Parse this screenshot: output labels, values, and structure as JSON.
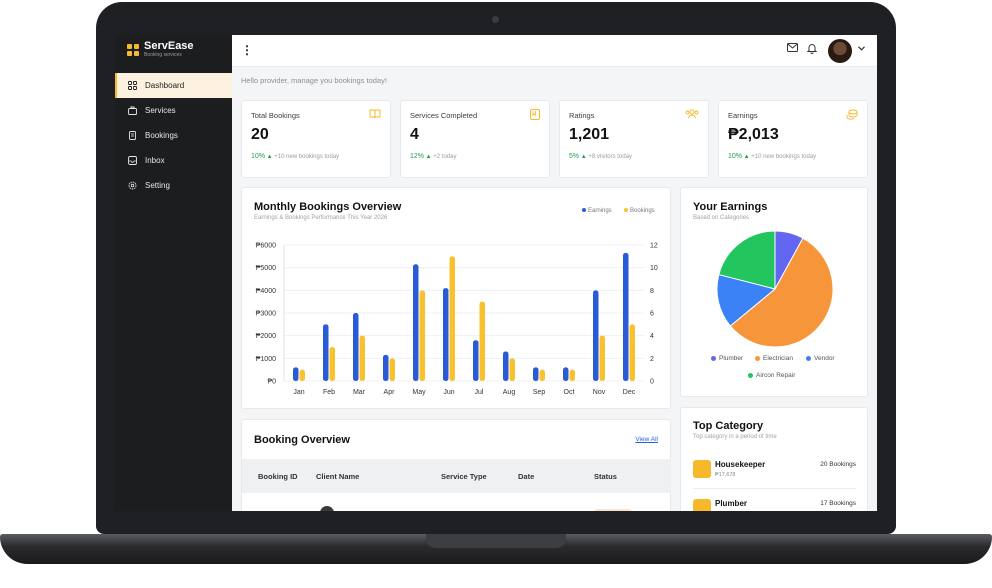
{
  "brand": {
    "name": "ServEase",
    "subtitle": "Booking services"
  },
  "sidebar": {
    "items": [
      {
        "label": "Dashboard",
        "icon": "grid-icon",
        "active": true
      },
      {
        "label": "Services",
        "icon": "briefcase-icon"
      },
      {
        "label": "Bookings",
        "icon": "clipboard-icon"
      },
      {
        "label": "Inbox",
        "icon": "inbox-icon"
      },
      {
        "label": "Setting",
        "icon": "gear-icon"
      }
    ]
  },
  "topbar": {
    "menu_icon": "kebab-icon",
    "icons": [
      "mail-icon",
      "bell-icon",
      "avatar",
      "chevron-down-icon"
    ]
  },
  "greeting": "Hello provider, manage you bookings today!",
  "stats": [
    {
      "title": "Total Bookings",
      "value": "20",
      "pct": "10%",
      "note": "+10 new bookings today",
      "icon": "book-icon"
    },
    {
      "title": "Services Completed",
      "value": "4",
      "pct": "12%",
      "note": "+2 today",
      "icon": "check-book-icon"
    },
    {
      "title": "Ratings",
      "value": "1,201",
      "pct": "5%",
      "note": "+8 visitors today",
      "icon": "people-icon"
    },
    {
      "title": "Earnings",
      "value": "₱2,013",
      "pct": "10%",
      "note": "+10 new bookings today",
      "icon": "coins-icon"
    }
  ],
  "monthly": {
    "title": "Monthly Bookings Overview",
    "subtitle": "Earnings & Bookings Performance This Year 2026",
    "legend": [
      "Earnings",
      "Bookings"
    ]
  },
  "chart_data": {
    "type": "bar",
    "categories": [
      "Jan",
      "Feb",
      "Mar",
      "Apr",
      "May",
      "Jun",
      "Jul",
      "Aug",
      "Sep",
      "Oct",
      "Nov",
      "Dec"
    ],
    "series": [
      {
        "name": "Earnings",
        "axis": "left",
        "color": "#2a5bd7",
        "values": [
          600,
          2500,
          3000,
          1150,
          5150,
          4100,
          1800,
          1300,
          600,
          600,
          4000,
          5650
        ]
      },
      {
        "name": "Bookings",
        "axis": "right",
        "color": "#f8c22e",
        "values": [
          1,
          3,
          4,
          2,
          8,
          11,
          7,
          2,
          1,
          1,
          4,
          5
        ]
      }
    ],
    "y_left": {
      "ticks": [
        "₱0",
        "₱1000",
        "₱2000",
        "₱3000",
        "₱4000",
        "₱5000",
        "₱6000"
      ],
      "range": [
        0,
        6000
      ]
    },
    "y_right": {
      "ticks": [
        "0",
        "2",
        "4",
        "6",
        "8",
        "10",
        "12"
      ],
      "range": [
        0,
        12
      ]
    },
    "grid": true,
    "legend_position": "top-right"
  },
  "earnings": {
    "title": "Your Earnings",
    "subtitle": "Based on Categories",
    "slices": [
      {
        "name": "Plumber",
        "value": 8,
        "color": "#6366f1"
      },
      {
        "name": "Electrician",
        "value": 56,
        "color": "#f7953b"
      },
      {
        "name": "Vendor",
        "value": 15,
        "color": "#3b82f6"
      },
      {
        "name": "Aircon Repair",
        "value": 21,
        "color": "#22c55e"
      }
    ]
  },
  "booking_overview": {
    "title": "Booking Overview",
    "view_all": "View All",
    "columns": [
      "Booking ID",
      "Client Name",
      "Service Type",
      "Date",
      "Status"
    ]
  },
  "top_category": {
    "title": "Top Category",
    "subtitle": "Top category in a period of time",
    "items": [
      {
        "name": "Housekeeper",
        "price": "₱17,678",
        "count": "20 Bookings"
      },
      {
        "name": "Plumber",
        "price": "",
        "count": "17 Bookings"
      }
    ]
  }
}
